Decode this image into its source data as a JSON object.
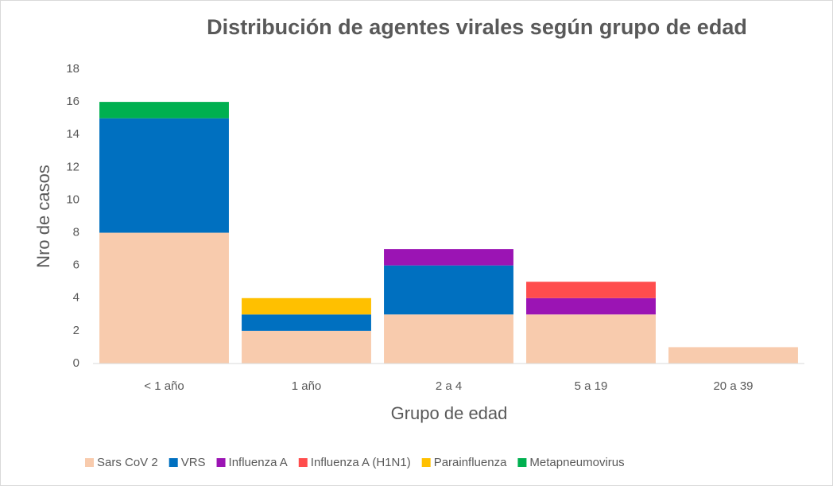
{
  "chart_data": {
    "type": "stacked_bar",
    "title": "Distribución de agentes virales según grupo de edad",
    "x_label": "Grupo de edad",
    "y_label": "Nro de casos",
    "categories": [
      "< 1 año",
      "1 año",
      "2 a 4",
      "5 a 19",
      "20 a 39"
    ],
    "series": [
      {
        "name": "Sars CoV 2",
        "color": "#f8cbad",
        "values": [
          8,
          2,
          3,
          3,
          1
        ]
      },
      {
        "name": "VRS",
        "color": "#0070c0",
        "values": [
          7,
          1,
          3,
          0,
          0
        ]
      },
      {
        "name": "Influenza A",
        "color": "#9b14b4",
        "values": [
          0,
          0,
          1,
          1,
          0
        ]
      },
      {
        "name": "Influenza A (H1N1)",
        "color": "#ff4d4d",
        "values": [
          0,
          0,
          0,
          1,
          0
        ]
      },
      {
        "name": "Parainfluenza",
        "color": "#ffc000",
        "values": [
          0,
          1,
          0,
          0,
          0
        ]
      },
      {
        "name": "Metapneumovirus",
        "color": "#00b050",
        "values": [
          1,
          0,
          0,
          0,
          0
        ]
      }
    ],
    "ylim": [
      0,
      18
    ],
    "yticks": [
      0,
      2,
      4,
      6,
      8,
      10,
      12,
      14,
      16,
      18
    ],
    "grid": false,
    "legend": "bottom"
  }
}
